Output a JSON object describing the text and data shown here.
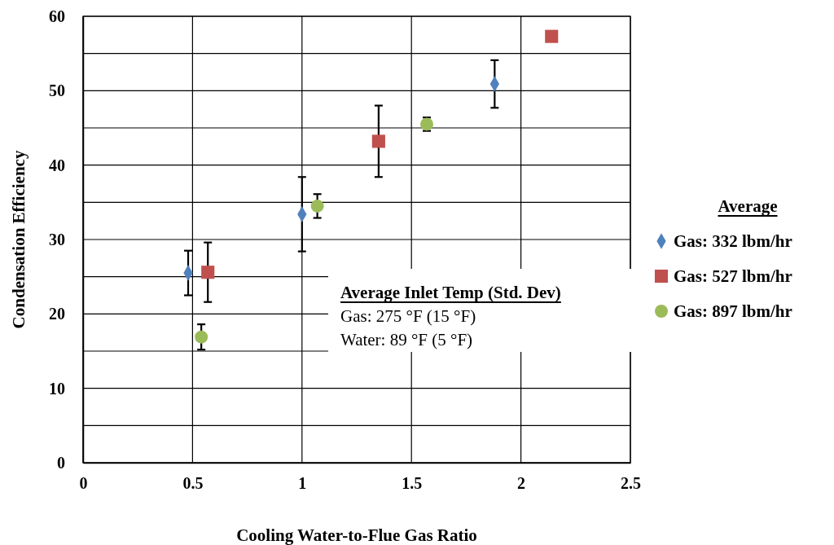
{
  "chart_data": {
    "type": "scatter",
    "xlabel": "Cooling Water-to-Flue Gas Ratio",
    "ylabel": "Condensation Efficiency",
    "legend_title": "Average",
    "legend": "right",
    "grid": true,
    "xlim": [
      0,
      2.5
    ],
    "xticks": [
      0,
      0.5,
      1,
      1.5,
      2,
      2.5
    ],
    "ylim": [
      0,
      60
    ],
    "yticks": [
      0,
      {
        "value": 5,
        "label": null
      },
      10,
      {
        "value": 15,
        "label": null
      },
      20,
      {
        "value": 25,
        "label": null
      },
      30,
      {
        "value": 35,
        "label": null
      },
      40,
      {
        "value": 45,
        "label": null
      },
      50,
      {
        "value": 55,
        "label": null
      },
      60
    ],
    "series": [
      {
        "name": "Gas: 332 lbm/hr",
        "color": "#4f81bd",
        "marker": "diamond",
        "x": [
          0.48,
          1.0,
          1.88
        ],
        "values": [
          25.5,
          33.4,
          50.9
        ],
        "errors": [
          3.0,
          5.0,
          3.2
        ]
      },
      {
        "name": "Gas: 527 lbm/hr",
        "color": "#c0504d",
        "marker": "square",
        "x": [
          0.57,
          1.35,
          2.14
        ],
        "values": [
          25.6,
          43.2,
          57.3
        ],
        "errors": [
          4.0,
          4.8,
          null
        ]
      },
      {
        "name": "Gas: 897 lbm/hr",
        "color": "#9bbb59",
        "marker": "circle",
        "x": [
          0.54,
          1.07,
          1.57
        ],
        "values": [
          16.9,
          34.5,
          45.5
        ],
        "errors": [
          1.7,
          1.6,
          0.9
        ]
      }
    ],
    "annotations": [
      "Average Inlet Temp (Std. Dev)",
      "Gas: 275 °F (15 °F)",
      "Water: 89 °F (5 °F)"
    ]
  }
}
